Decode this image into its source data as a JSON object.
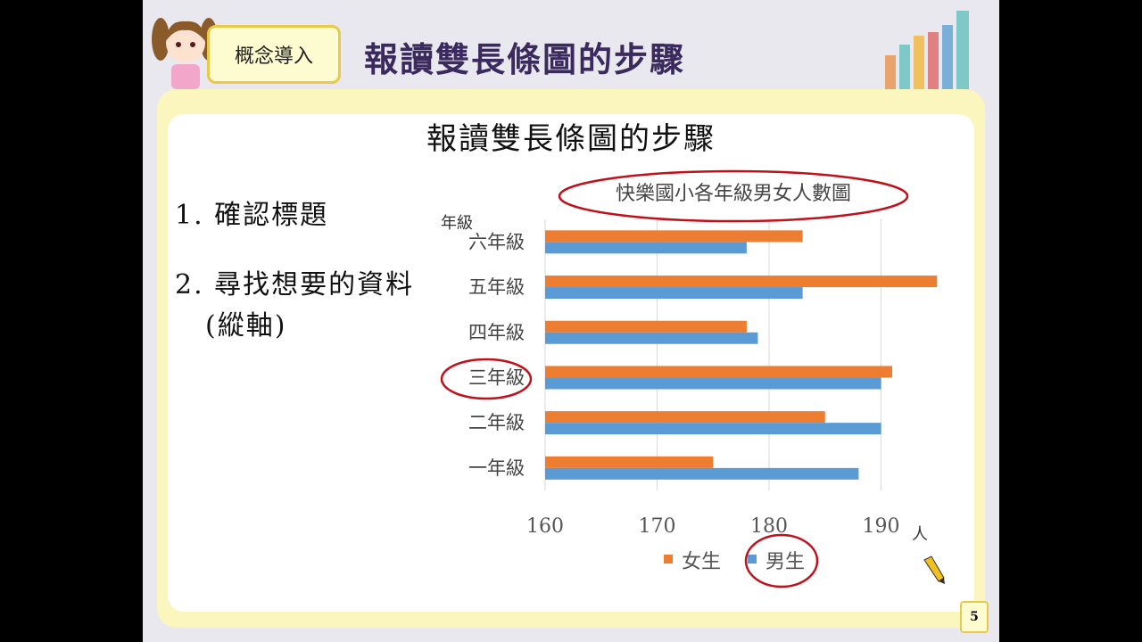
{
  "header": {
    "tag": "概念導入",
    "title": "報讀雙長條圖的步驟"
  },
  "main": {
    "title": "報讀雙長條圖的步驟",
    "steps": [
      "1. 確認標題",
      "2. 尋找想要的資料",
      "(縱軸)"
    ]
  },
  "page_number": "5",
  "colors": {
    "girls": "#ed7d31",
    "boys": "#5b9bd5",
    "highlight": "#c0101a"
  },
  "chart_data": {
    "type": "bar",
    "orientation": "horizontal",
    "title": "快樂國小各年級男女人數圖",
    "ylabel": "年級",
    "xlabel": "人",
    "categories": [
      "一年級",
      "二年級",
      "三年級",
      "四年級",
      "五年級",
      "六年級"
    ],
    "series": [
      {
        "name": "女生",
        "values": [
          175,
          185,
          191,
          178,
          195,
          183
        ]
      },
      {
        "name": "男生",
        "values": [
          188,
          190,
          190,
          179,
          183,
          178
        ]
      }
    ],
    "xlim": [
      160,
      190
    ],
    "xticks": [
      160,
      170,
      180,
      190
    ],
    "grid": true,
    "legend": "bottom",
    "annotations": [
      "title circled",
      "三年級 circled",
      "男生 circled"
    ]
  }
}
